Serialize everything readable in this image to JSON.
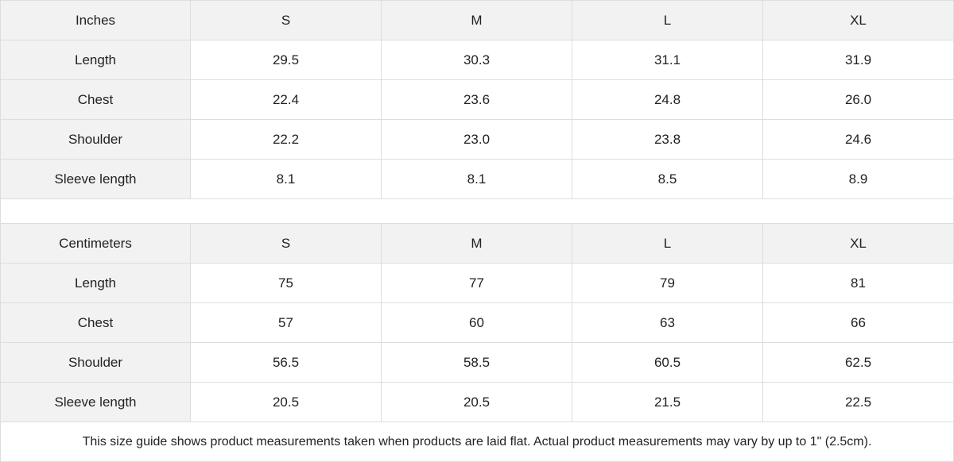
{
  "tables": [
    {
      "unit": "Inches",
      "sizes": [
        "S",
        "M",
        "L",
        "XL"
      ],
      "rows": [
        {
          "label": "Length",
          "values": [
            "29.5",
            "30.3",
            "31.1",
            "31.9"
          ]
        },
        {
          "label": "Chest",
          "values": [
            "22.4",
            "23.6",
            "24.8",
            "26.0"
          ]
        },
        {
          "label": "Shoulder",
          "values": [
            "22.2",
            "23.0",
            "23.8",
            "24.6"
          ]
        },
        {
          "label": "Sleeve length",
          "values": [
            "8.1",
            "8.1",
            "8.5",
            "8.9"
          ]
        }
      ]
    },
    {
      "unit": "Centimeters",
      "sizes": [
        "S",
        "M",
        "L",
        "XL"
      ],
      "rows": [
        {
          "label": "Length",
          "values": [
            "75",
            "77",
            "79",
            "81"
          ]
        },
        {
          "label": "Chest",
          "values": [
            "57",
            "60",
            "63",
            "66"
          ]
        },
        {
          "label": "Shoulder",
          "values": [
            "56.5",
            "58.5",
            "60.5",
            "62.5"
          ]
        },
        {
          "label": "Sleeve length",
          "values": [
            "20.5",
            "20.5",
            "21.5",
            "22.5"
          ]
        }
      ]
    }
  ],
  "note": "This size guide shows product measurements taken when products are laid flat.  Actual product measurements may vary by up to 1\" (2.5cm)."
}
